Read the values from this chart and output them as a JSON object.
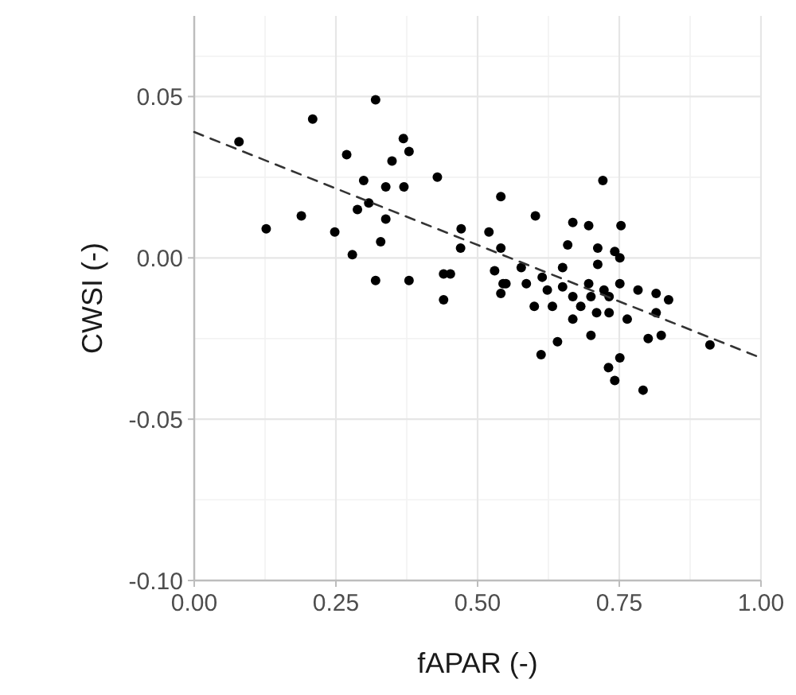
{
  "chart_data": {
    "type": "scatter",
    "xlabel": "fAPAR (-)",
    "ylabel": "CWSI (-)",
    "xlim": [
      0,
      1.0
    ],
    "xticks": [
      {
        "value": 0,
        "label": "0.00"
      },
      0.25,
      {
        "value": 0.5,
        "label": "0.50"
      },
      0.75,
      {
        "value": 1,
        "label": "1.00"
      }
    ],
    "ylim": [
      -0.1,
      0.075
    ],
    "yticks": [
      {
        "value": -0.1,
        "label": "-0.10"
      },
      -0.05,
      {
        "value": 0,
        "label": "0.00"
      },
      0.05
    ],
    "grid": true,
    "series": [
      {
        "color": "#000000",
        "marker": "circle",
        "x": [
          0.32,
          0.209,
          0.079,
          0.369,
          0.379,
          0.269,
          0.349,
          0.429,
          0.299,
          0.338,
          0.37,
          0.541,
          0.308,
          0.288,
          0.189,
          0.338,
          0.127,
          0.248,
          0.329,
          0.471,
          0.52,
          0.47,
          0.541,
          0.279,
          0.32,
          0.379,
          0.44,
          0.452,
          0.44,
          0.53,
          0.541,
          0.55,
          0.721,
          0.602,
          0.668,
          0.696,
          0.753,
          0.659,
          0.712,
          0.742,
          0.751,
          0.712,
          0.65,
          0.577,
          0.614,
          0.696,
          0.751,
          0.545,
          0.586,
          0.65,
          0.723,
          0.783,
          0.815,
          0.837,
          0.623,
          0.668,
          0.7,
          0.6,
          0.632,
          0.682,
          0.732,
          0.71,
          0.732,
          0.764,
          0.668,
          0.815,
          0.7,
          0.801,
          0.824,
          0.91,
          0.641,
          0.612,
          0.751,
          0.731,
          0.742,
          0.792
        ],
        "values": [
          0.049,
          0.043,
          0.036,
          0.037,
          0.033,
          0.032,
          0.03,
          0.025,
          0.024,
          0.022,
          0.022,
          0.019,
          0.017,
          0.015,
          0.013,
          0.012,
          0.009,
          0.008,
          0.005,
          0.009,
          0.008,
          0.003,
          0.003,
          0.001,
          -0.007,
          -0.007,
          -0.005,
          -0.005,
          -0.013,
          -0.004,
          -0.011,
          -0.008,
          0.024,
          0.013,
          0.011,
          0.01,
          0.01,
          0.004,
          0.003,
          0.002,
          0.0,
          -0.002,
          -0.003,
          -0.003,
          -0.006,
          -0.008,
          -0.008,
          -0.008,
          -0.008,
          -0.009,
          -0.01,
          -0.01,
          -0.011,
          -0.013,
          -0.01,
          -0.012,
          -0.012,
          -0.015,
          -0.015,
          -0.015,
          -0.012,
          -0.017,
          -0.017,
          -0.019,
          -0.019,
          -0.017,
          -0.024,
          -0.025,
          -0.024,
          -0.027,
          -0.026,
          -0.03,
          -0.031,
          -0.034,
          -0.038,
          -0.041
        ]
      },
      {
        "type": "line",
        "color": "#333333",
        "line_style": "dashed",
        "marker": "none",
        "x": [
          0,
          1.0
        ],
        "values": [
          0.039,
          -0.031
        ]
      }
    ]
  }
}
